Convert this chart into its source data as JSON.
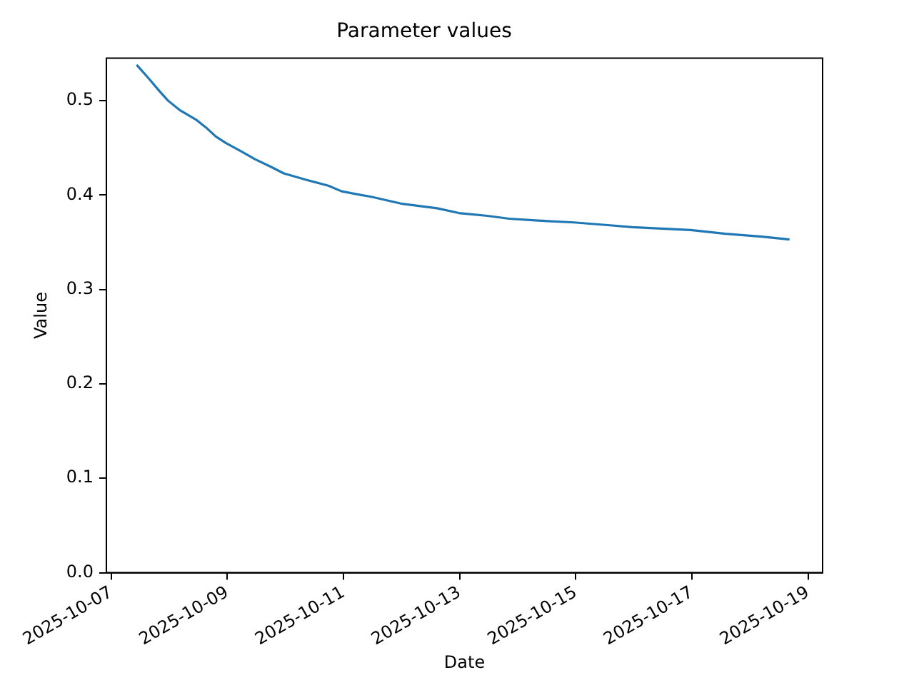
{
  "chart_data": {
    "type": "line",
    "title": "Parameter values",
    "xlabel": "Date",
    "ylabel": "Value",
    "x": [
      "2025-10-07T10:30",
      "2025-10-07T15:00",
      "2025-10-07T20:00",
      "2025-10-07T23:30",
      "2025-10-08T04:20",
      "2025-10-08T11:00",
      "2025-10-08T15:00",
      "2025-10-08T19:15",
      "2025-10-08T23:30",
      "2025-10-09T06:00",
      "2025-10-09T11:25",
      "2025-10-09T18:00",
      "2025-10-09T23:20",
      "2025-10-10T08:50",
      "2025-10-10T17:45",
      "2025-10-10T23:15",
      "2025-10-11T11:45",
      "2025-10-11T23:45",
      "2025-10-12T14:40",
      "2025-10-12T23:40",
      "2025-10-13T11:30",
      "2025-10-13T20:30",
      "2025-10-14T08:30",
      "2025-10-14T23:20",
      "2025-10-15T14:10",
      "2025-10-15T23:20",
      "2025-10-16T23:30",
      "2025-10-17T13:50",
      "2025-10-18T04:50",
      "2025-10-18T16:20"
    ],
    "series": [
      {
        "color": "#1f77b4",
        "values": [
          0.538,
          0.525,
          0.51,
          0.5,
          0.49,
          0.48,
          0.472,
          0.462,
          0.455,
          0.446,
          0.438,
          0.43,
          0.423,
          0.416,
          0.41,
          0.404,
          0.398,
          0.391,
          0.386,
          0.381,
          0.378,
          0.375,
          0.373,
          0.371,
          0.368,
          0.366,
          0.363,
          0.359,
          0.356,
          0.353
        ]
      }
    ],
    "xlim": [
      "2025-10-06T22:00",
      "2025-10-19T06:00"
    ],
    "xticks": [
      "2025-10-07",
      "2025-10-09",
      "2025-10-11",
      "2025-10-13",
      "2025-10-15",
      "2025-10-17",
      "2025-10-19"
    ],
    "ylim": [
      0,
      0.545
    ],
    "yticks": [
      {
        "value": 0,
        "label": "0.0"
      },
      {
        "value": 0.1,
        "label": "0.1"
      },
      {
        "value": 0.2,
        "label": "0.2"
      },
      {
        "value": 0.3,
        "label": "0.3"
      },
      {
        "value": 0.4,
        "label": "0.4"
      },
      {
        "value": 0.5,
        "label": "0.5"
      }
    ],
    "grid": false,
    "legend": false,
    "marker": "none",
    "line_style": "solid"
  }
}
